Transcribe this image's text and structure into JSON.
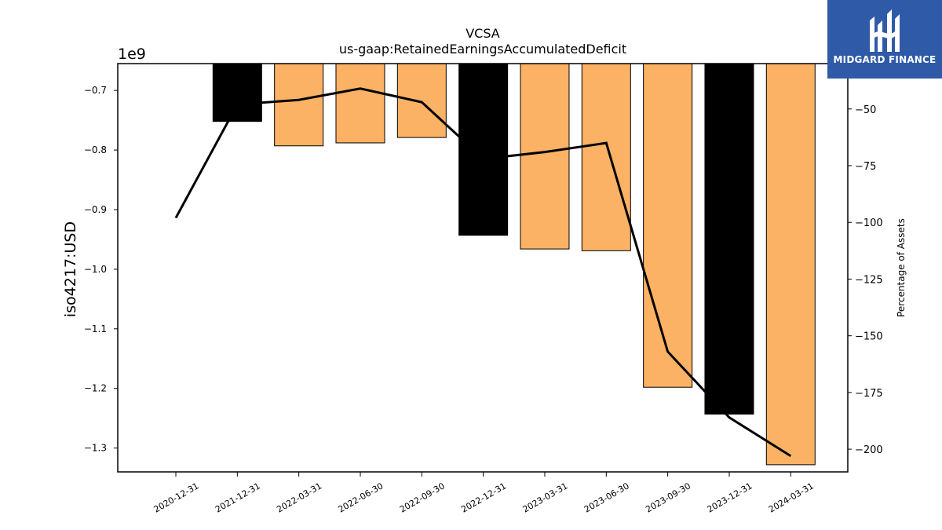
{
  "logo": {
    "text": "MIDGARD FINANCE",
    "background": "#2f5aa8"
  },
  "chart_data": {
    "type": "bar",
    "title": "VCSA",
    "subtitle": "us-gaap:RetainedEarningsAccumulatedDeficit",
    "ylabel": "iso4217:USD",
    "ylabel_right": "Percentage of Assets",
    "y_offset_label": "1e9",
    "categories": [
      "2020-12-31",
      "2021-12-31",
      "2022-03-31",
      "2022-06-30",
      "2022-09-30",
      "2022-12-31",
      "2023-03-31",
      "2023-06-30",
      "2023-09-30",
      "2023-12-31",
      "2024-03-31"
    ],
    "series": [
      {
        "type": "bar",
        "values": [
          null,
          -0.752,
          -0.793,
          -0.788,
          -0.779,
          -0.943,
          -0.966,
          -0.969,
          -1.198,
          -1.243,
          -1.328
        ]
      },
      {
        "type": "line",
        "axis": "right",
        "values": [
          -98,
          -48,
          -46,
          -41,
          -47,
          -72,
          -69,
          -65,
          -157,
          -186,
          -203
        ]
      }
    ],
    "bar_colors": [
      "#000000",
      "#000000",
      "#fbb264",
      "#fbb264",
      "#fbb264",
      "#000000",
      "#fbb264",
      "#fbb264",
      "#fbb264",
      "#000000",
      "#fbb264"
    ],
    "line_color": "#000000",
    "ylim": [
      -1.34,
      -0.655
    ],
    "ylim_right": [
      -210,
      -30
    ],
    "yticks": [
      -0.7,
      -0.8,
      -0.9,
      -1.0,
      -1.1,
      -1.2,
      -1.3
    ],
    "ytick_labels": [
      "−0.7",
      "−0.8",
      "−0.9",
      "−1.0",
      "−1.1",
      "−1.2",
      "−1.3"
    ],
    "yticks_right": [
      -50,
      -75,
      -100,
      -125,
      -150,
      -175,
      -200
    ],
    "ytick_labels_right": [
      "−50",
      "−75",
      "−100",
      "−125",
      "−150",
      "−175",
      "−200"
    ],
    "grid": false,
    "legend": "none"
  }
}
